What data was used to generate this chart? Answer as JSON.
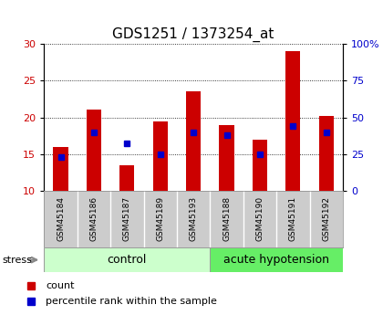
{
  "title": "GDS1251 / 1373254_at",
  "samples": [
    "GSM45184",
    "GSM45186",
    "GSM45187",
    "GSM45189",
    "GSM45193",
    "GSM45188",
    "GSM45190",
    "GSM45191",
    "GSM45192"
  ],
  "count_values": [
    16.0,
    21.0,
    13.5,
    19.5,
    23.5,
    19.0,
    17.0,
    29.0,
    20.2
  ],
  "percentile_values": [
    23,
    40,
    32,
    25,
    40,
    38,
    25,
    44,
    40
  ],
  "ylim_left": [
    10,
    30
  ],
  "ylim_right": [
    0,
    100
  ],
  "yticks_left": [
    10,
    15,
    20,
    25,
    30
  ],
  "yticks_right": [
    0,
    25,
    50,
    75,
    100
  ],
  "ytick_labels_right": [
    "0",
    "25",
    "50",
    "75",
    "100%"
  ],
  "bar_color": "#cc0000",
  "dot_color": "#0000cc",
  "bar_bottom": 10,
  "groups": [
    {
      "label": "control",
      "start": 0,
      "end": 5,
      "color": "#ccffcc"
    },
    {
      "label": "acute hypotension",
      "start": 5,
      "end": 9,
      "color": "#66ee66"
    }
  ],
  "stress_label": "stress",
  "legend_items": [
    {
      "label": "count",
      "color": "#cc0000"
    },
    {
      "label": "percentile rank within the sample",
      "color": "#0000cc"
    }
  ],
  "title_fontsize": 11,
  "tick_fontsize": 8,
  "grid_color": "#000000",
  "background_color": "#ffffff",
  "tick_label_area_color": "#cccccc",
  "group_label_fontsize": 9,
  "bar_width": 0.45
}
